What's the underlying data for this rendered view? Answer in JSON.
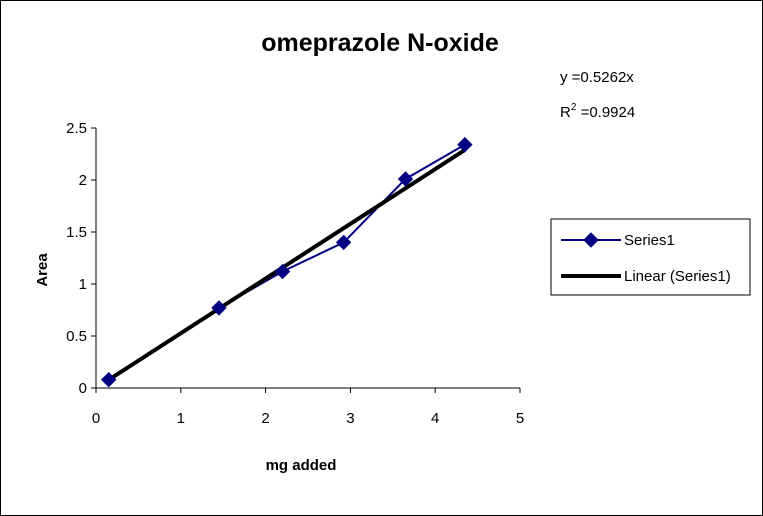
{
  "chart_data": {
    "type": "scatter",
    "title": "omeprazole N-oxide",
    "xlabel": "mg added",
    "ylabel": "Area",
    "xlim": [
      0,
      5
    ],
    "ylim": [
      0,
      2.5
    ],
    "x_ticks": [
      "0",
      "1",
      "2",
      "3",
      "4",
      "5"
    ],
    "y_ticks": [
      "0",
      "0.5",
      "1",
      "1.5",
      "2",
      "2.5"
    ],
    "grid": false,
    "legend_position": "right",
    "series": [
      {
        "name": "Series1",
        "color": "#000080",
        "marker": "diamond",
        "x": [
          0.15,
          1.45,
          2.2,
          2.92,
          3.65,
          4.35
        ],
        "y": [
          0.08,
          0.77,
          1.12,
          1.4,
          2.01,
          2.34
        ]
      }
    ],
    "trendline": {
      "name": "Linear (Series1)",
      "color": "#000000",
      "slope": 0.5262,
      "x_range": [
        0.15,
        4.35
      ]
    },
    "annotations": {
      "equation": "y =0.5262x",
      "r2_label": "R",
      "r2_sup": "2",
      "r2_value": " =0.9924"
    }
  }
}
